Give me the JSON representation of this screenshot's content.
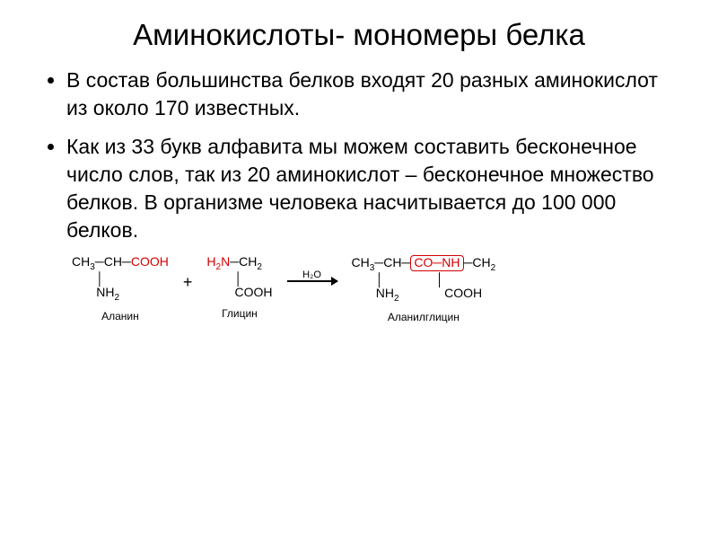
{
  "title": "Аминокислоты- мономеры белка",
  "bullets": [
    "В состав большинства белков входят 20 разных аминокислот из около 170 известных.",
    "Как из 33 букв алфавита мы можем составить бесконечное число слов, так из 20 аминокислот – бесконечное множество белков. В организме человека насчитывается до 100 000 белков."
  ],
  "reaction": {
    "mol1_label": "Аланин",
    "mol2_label": "Глицин",
    "product_label": "Аланилглицин",
    "arrow_top": "H₂O",
    "plus": "+",
    "colors": {
      "highlight": "#d40000",
      "text": "#000000",
      "bg": "#ffffff"
    },
    "font_sizes": {
      "title": 33,
      "body": 23,
      "formula": 14,
      "label": 12
    }
  }
}
